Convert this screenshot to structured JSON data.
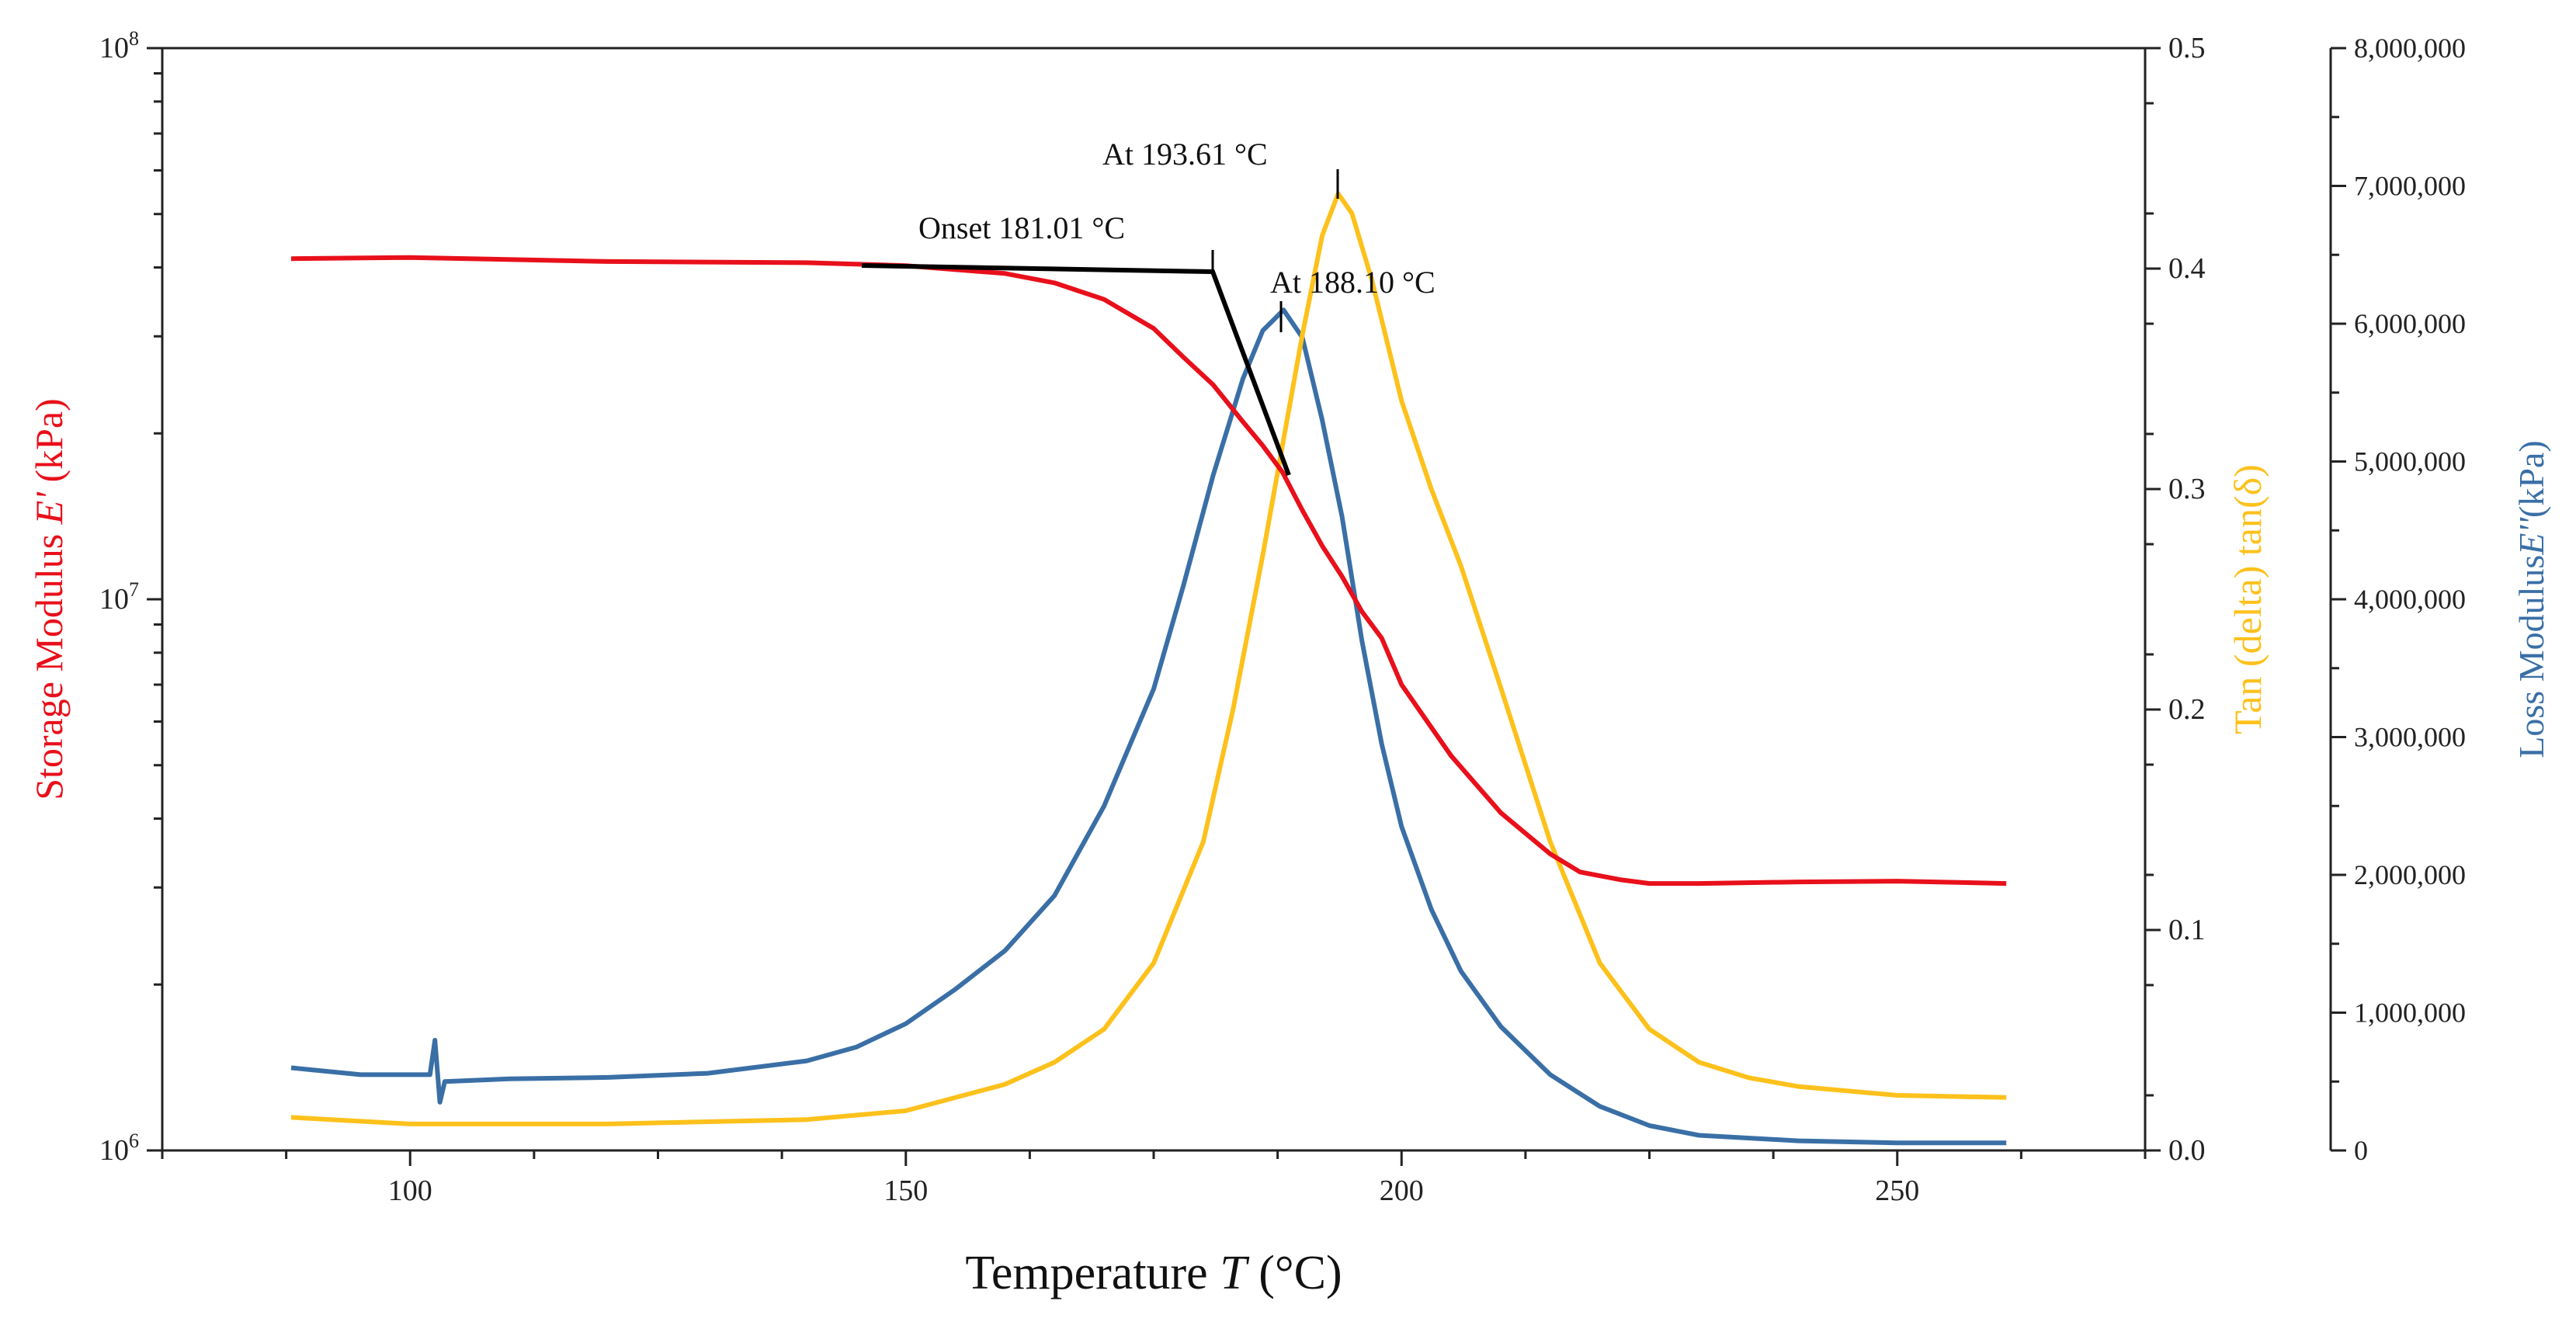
{
  "chart_data": {
    "type": "line",
    "title": "",
    "xlabel": {
      "prefix": "Temperature ",
      "italic": "T",
      "suffix": " (°C)"
    },
    "ylabel_left": {
      "prefix": "Storage Modulus ",
      "italic": "E'",
      "suffix": " (kPa)",
      "color": "#e8101b"
    },
    "ylabel_right1": {
      "text": "Tan (delta) tan(δ)",
      "color": "#fdc11c"
    },
    "ylabel_right2": {
      "prefix": "Loss Modulus",
      "italic": "E''",
      "suffix": "(kPa)",
      "color": "#3a6fa6"
    },
    "xlim": [
      75,
      275
    ],
    "xticks": [
      100,
      150,
      200,
      250
    ],
    "xtick_labels": [
      "100",
      "150",
      "200",
      "250"
    ],
    "ylim_left_log10": [
      6,
      8
    ],
    "yticks_left": [
      {
        "base": "10",
        "exp": "6",
        "value": 1000000
      },
      {
        "base": "10",
        "exp": "7",
        "value": 10000000
      },
      {
        "base": "10",
        "exp": "8",
        "value": 100000000
      }
    ],
    "ylim_right1": [
      0,
      0.5
    ],
    "yticks_right1": [
      "0.0",
      "0.1",
      "0.2",
      "0.3",
      "0.4",
      "0.5"
    ],
    "ylim_right2": [
      0,
      8000000
    ],
    "yticks_right2": [
      "0",
      "1,000,000",
      "2,000,000",
      "3,000,000",
      "4,000,000",
      "5,000,000",
      "6,000,000",
      "7,000,000",
      "8,000,000"
    ],
    "grid": false,
    "series": [
      {
        "name": "Storage Modulus E'",
        "axis": "left",
        "color": "#e8101b",
        "x": [
          88,
          100,
          120,
          140,
          150,
          160,
          165,
          170,
          175,
          178,
          181,
          184,
          186,
          188,
          190,
          192,
          194,
          196,
          198,
          200,
          205,
          210,
          215,
          218,
          222,
          225,
          230,
          240,
          250,
          261
        ],
        "y": [
          41500000,
          41700000,
          41000000,
          40800000,
          40300000,
          39000000,
          37500000,
          35000000,
          31000000,
          27500000,
          24500000,
          21000000,
          19000000,
          17000000,
          14500000,
          12500000,
          11000000,
          9500000,
          8500000,
          7000000,
          5200000,
          4100000,
          3450000,
          3200000,
          3100000,
          3050000,
          3050000,
          3070000,
          3080000,
          3050000
        ]
      },
      {
        "name": "Tan (delta) tan(δ)",
        "axis": "right1",
        "color": "#fdc11c",
        "x": [
          88,
          100,
          120,
          140,
          150,
          160,
          165,
          170,
          175,
          180,
          183,
          186,
          188,
          190,
          192,
          193.61,
          195,
          197,
          200,
          203,
          206,
          210,
          215,
          220,
          225,
          230,
          235,
          240,
          250,
          261
        ],
        "y": [
          0.015,
          0.012,
          0.012,
          0.014,
          0.018,
          0.03,
          0.04,
          0.055,
          0.085,
          0.14,
          0.2,
          0.27,
          0.32,
          0.37,
          0.415,
          0.434,
          0.425,
          0.395,
          0.34,
          0.3,
          0.265,
          0.21,
          0.14,
          0.085,
          0.055,
          0.04,
          0.033,
          0.029,
          0.025,
          0.024
        ]
      },
      {
        "name": "Loss Modulus E''",
        "axis": "right2",
        "color": "#3a6fa6",
        "x": [
          88,
          95,
          102,
          102.5,
          103,
          103.5,
          110,
          120,
          130,
          140,
          145,
          150,
          155,
          160,
          165,
          170,
          175,
          178,
          181,
          184,
          186,
          188.1,
          190,
          192,
          194,
          196,
          198,
          200,
          203,
          206,
          210,
          215,
          220,
          225,
          230,
          240,
          250,
          261
        ],
        "y": [
          600000,
          550000,
          550000,
          800000,
          350000,
          500000,
          520000,
          530000,
          560000,
          650000,
          750000,
          920000,
          1170000,
          1450000,
          1850000,
          2500000,
          3350000,
          4100000,
          4900000,
          5600000,
          5950000,
          6100000,
          5900000,
          5300000,
          4600000,
          3700000,
          2950000,
          2350000,
          1750000,
          1300000,
          900000,
          550000,
          320000,
          180000,
          110000,
          70000,
          55000,
          55000
        ]
      }
    ],
    "annotations": [
      {
        "label": "Onset 181.01 °C",
        "x": 181.01
      },
      {
        "label": "At 193.61 °C",
        "x": 193.61
      },
      {
        "label": "At 188.10 °C",
        "x": 188.1
      }
    ]
  }
}
